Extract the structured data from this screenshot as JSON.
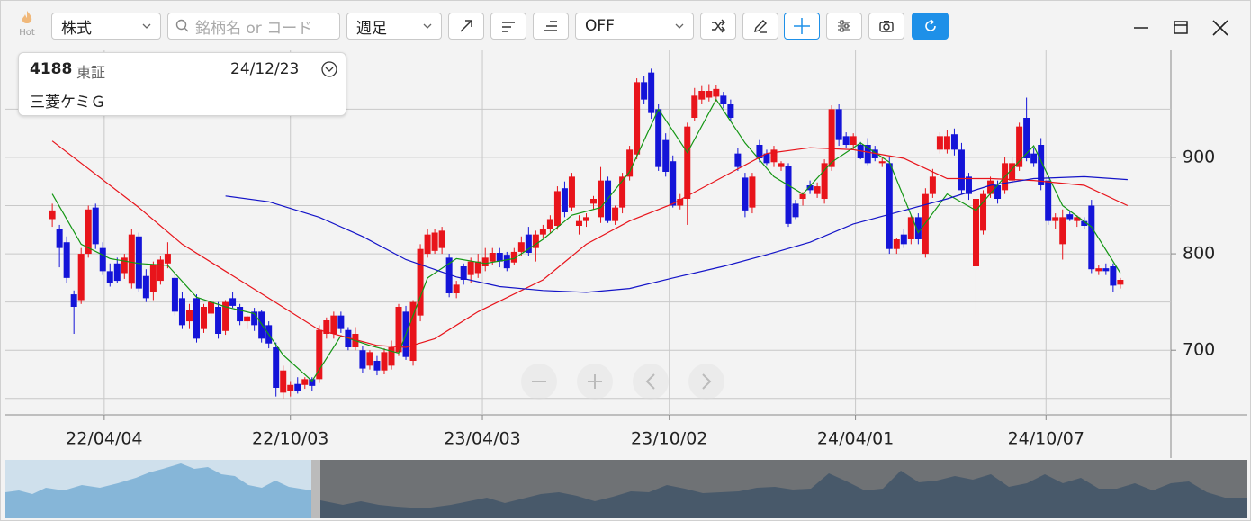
{
  "toolbar": {
    "hot": "Hot",
    "market": "株式",
    "search_placeholder": "銘柄名 or コード",
    "period": "週足",
    "indicator": "OFF"
  },
  "info": {
    "code": "4188",
    "exchange": "東証",
    "date": "24/12/23",
    "name": "三菱ケミＧ"
  },
  "chart_data": {
    "type": "candlestick",
    "up_color": "#e8141b",
    "down_color": "#1414d8",
    "candles": [
      [
        836,
        852,
        828,
        845
      ],
      [
        826,
        830,
        786,
        806
      ],
      [
        812,
        818,
        770,
        775
      ],
      [
        758,
        762,
        717,
        745
      ],
      [
        752,
        806,
        748,
        800
      ],
      [
        800,
        850,
        796,
        846
      ],
      [
        848,
        852,
        805,
        810
      ],
      [
        806,
        812,
        778,
        782
      ],
      [
        782,
        790,
        766,
        770
      ],
      [
        790,
        796,
        770,
        772
      ],
      [
        780,
        800,
        774,
        796
      ],
      [
        769,
        826,
        764,
        820
      ],
      [
        818,
        822,
        760,
        764
      ],
      [
        777,
        784,
        750,
        754
      ],
      [
        760,
        792,
        752,
        788
      ],
      [
        772,
        798,
        768,
        794
      ],
      [
        790,
        812,
        785,
        800
      ],
      [
        775,
        780,
        736,
        740
      ],
      [
        754,
        760,
        722,
        726
      ],
      [
        730,
        748,
        722,
        742
      ],
      [
        754,
        758,
        708,
        712
      ],
      [
        722,
        748,
        718,
        745
      ],
      [
        738,
        752,
        734,
        750
      ],
      [
        745,
        750,
        712,
        717
      ],
      [
        720,
        752,
        716,
        750
      ],
      [
        754,
        760,
        744,
        746
      ],
      [
        745,
        748,
        726,
        730
      ],
      [
        730,
        736,
        722,
        735
      ],
      [
        740,
        744,
        720,
        726
      ],
      [
        740,
        742,
        708,
        712
      ],
      [
        726,
        730,
        702,
        707
      ],
      [
        703,
        708,
        652,
        661
      ],
      [
        656,
        684,
        650,
        679
      ],
      [
        658,
        668,
        652,
        664
      ],
      [
        665,
        672,
        655,
        658
      ],
      [
        664,
        672,
        660,
        670
      ],
      [
        670,
        672,
        658,
        663
      ],
      [
        670,
        726,
        666,
        721
      ],
      [
        717,
        734,
        712,
        731
      ],
      [
        717,
        740,
        712,
        736
      ],
      [
        736,
        740,
        718,
        722
      ],
      [
        721,
        724,
        700,
        703
      ],
      [
        703,
        724,
        700,
        717
      ],
      [
        700,
        704,
        676,
        681
      ],
      [
        684,
        700,
        680,
        698
      ],
      [
        689,
        694,
        674,
        679
      ],
      [
        679,
        702,
        675,
        698
      ],
      [
        684,
        710,
        680,
        703
      ],
      [
        698,
        748,
        694,
        745
      ],
      [
        740,
        746,
        690,
        693
      ],
      [
        689,
        752,
        684,
        750
      ],
      [
        736,
        810,
        730,
        805
      ],
      [
        800,
        826,
        796,
        820
      ],
      [
        803,
        826,
        800,
        822
      ],
      [
        806,
        828,
        800,
        824
      ],
      [
        796,
        800,
        755,
        759
      ],
      [
        759,
        772,
        754,
        768
      ],
      [
        787,
        790,
        768,
        773
      ],
      [
        778,
        796,
        770,
        792
      ],
      [
        780,
        800,
        775,
        792
      ],
      [
        787,
        806,
        782,
        796
      ],
      [
        792,
        806,
        788,
        801
      ],
      [
        801,
        806,
        786,
        792
      ],
      [
        799,
        802,
        782,
        785
      ],
      [
        791,
        806,
        788,
        802
      ],
      [
        802,
        818,
        798,
        812
      ],
      [
        820,
        828,
        798,
        801
      ],
      [
        806,
        824,
        792,
        820
      ],
      [
        820,
        830,
        816,
        826
      ],
      [
        826,
        840,
        822,
        836
      ],
      [
        829,
        870,
        825,
        865
      ],
      [
        868,
        875,
        838,
        843
      ],
      [
        848,
        884,
        844,
        880
      ],
      [
        829,
        840,
        820,
        834
      ],
      [
        834,
        842,
        828,
        838
      ],
      [
        852,
        860,
        846,
        857
      ],
      [
        838,
        890,
        832,
        876
      ],
      [
        876,
        880,
        832,
        834
      ],
      [
        834,
        850,
        830,
        848
      ],
      [
        848,
        884,
        842,
        880
      ],
      [
        880,
        912,
        876,
        908
      ],
      [
        903,
        982,
        898,
        978
      ],
      [
        978,
        984,
        955,
        960
      ],
      [
        988,
        992,
        940,
        946
      ],
      [
        950,
        955,
        886,
        890
      ],
      [
        918,
        925,
        880,
        885
      ],
      [
        896,
        902,
        848,
        850
      ],
      [
        850,
        862,
        846,
        857
      ],
      [
        857,
        936,
        830,
        932
      ],
      [
        941,
        972,
        938,
        964
      ],
      [
        960,
        974,
        955,
        969
      ],
      [
        962,
        976,
        958,
        969
      ],
      [
        963,
        975,
        958,
        971
      ],
      [
        964,
        968,
        951,
        955
      ],
      [
        955,
        960,
        938,
        941
      ],
      [
        904,
        910,
        886,
        890
      ],
      [
        879,
        884,
        838,
        845
      ],
      [
        848,
        884,
        842,
        880
      ],
      [
        913,
        918,
        895,
        899
      ],
      [
        904,
        908,
        892,
        894
      ],
      [
        895,
        912,
        890,
        908
      ],
      [
        890,
        896,
        886,
        894
      ],
      [
        891,
        894,
        828,
        831
      ],
      [
        852,
        856,
        836,
        838
      ],
      [
        857,
        864,
        850,
        862
      ],
      [
        871,
        876,
        862,
        866
      ],
      [
        862,
        874,
        858,
        870
      ],
      [
        857,
        898,
        852,
        894
      ],
      [
        890,
        954,
        886,
        950
      ],
      [
        950,
        955,
        912,
        918
      ],
      [
        922,
        926,
        910,
        913
      ],
      [
        913,
        925,
        908,
        922
      ],
      [
        913,
        916,
        898,
        899
      ],
      [
        913,
        920,
        892,
        894
      ],
      [
        908,
        912,
        896,
        899
      ],
      [
        894,
        900,
        890,
        896
      ],
      [
        894,
        900,
        800,
        805
      ],
      [
        805,
        816,
        800,
        815
      ],
      [
        820,
        826,
        806,
        810
      ],
      [
        815,
        840,
        810,
        838
      ],
      [
        838,
        842,
        810,
        815
      ],
      [
        800,
        868,
        796,
        862
      ],
      [
        862,
        888,
        858,
        880
      ],
      [
        908,
        926,
        904,
        922
      ],
      [
        908,
        928,
        904,
        922
      ],
      [
        924,
        930,
        902,
        908
      ],
      [
        908,
        915,
        862,
        866
      ],
      [
        880,
        884,
        856,
        862
      ],
      [
        787,
        862,
        736,
        857
      ],
      [
        824,
        866,
        820,
        862
      ],
      [
        862,
        880,
        858,
        876
      ],
      [
        871,
        876,
        852,
        857
      ],
      [
        866,
        900,
        862,
        894
      ],
      [
        876,
        900,
        872,
        894
      ],
      [
        890,
        936,
        886,
        932
      ],
      [
        941,
        962,
        896,
        899
      ],
      [
        904,
        910,
        890,
        894
      ],
      [
        913,
        920,
        866,
        871
      ],
      [
        876,
        880,
        830,
        834
      ],
      [
        834,
        842,
        826,
        838
      ],
      [
        810,
        846,
        794,
        838
      ],
      [
        841,
        844,
        834,
        836
      ],
      [
        834,
        840,
        828,
        838
      ],
      [
        834,
        838,
        826,
        829
      ],
      [
        850,
        856,
        780,
        784
      ],
      [
        782,
        788,
        778,
        785
      ],
      [
        785,
        790,
        778,
        782
      ],
      [
        787,
        790,
        760,
        767
      ],
      [
        768,
        775,
        764,
        773
      ]
    ],
    "xlim": [
      -6.5,
      155
    ],
    "xticks": [
      {
        "value": 7.2,
        "label": "22/04/04"
      },
      {
        "value": 33,
        "label": "22/10/03"
      },
      {
        "value": 59.6,
        "label": "23/04/03"
      },
      {
        "value": 85.5,
        "label": "23/10/02"
      },
      {
        "value": 111.3,
        "label": "24/04/01"
      },
      {
        "value": 137.7,
        "label": "24/10/07"
      }
    ],
    "ylim": [
      633,
      1011
    ],
    "yticks": [
      700,
      800,
      900
    ],
    "minor_grid": [
      650,
      750,
      850,
      950
    ],
    "grid": true,
    "moving_averages": [
      {
        "color": "#139613",
        "x": [
          0,
          4,
          8,
          12,
          16,
          20,
          24,
          28,
          32,
          36,
          40,
          44,
          48,
          52,
          56,
          60,
          64,
          68,
          72,
          76,
          80,
          84,
          88,
          92,
          96,
          100,
          104,
          108,
          112,
          116,
          120,
          124,
          128,
          132,
          136,
          140,
          144,
          148
        ],
        "values": [
          862,
          810,
          795,
          790,
          788,
          755,
          745,
          738,
          695,
          668,
          715,
          705,
          697,
          775,
          795,
          790,
          795,
          815,
          840,
          848,
          885,
          950,
          905,
          960,
          915,
          880,
          862,
          895,
          915,
          895,
          822,
          862,
          845,
          880,
          912,
          850,
          828,
          780
        ]
      },
      {
        "color": "#e8141b",
        "x": [
          0,
          12,
          18,
          30,
          37,
          45,
          49,
          53,
          59,
          68,
          74,
          80,
          86,
          93,
          99,
          105,
          111,
          118,
          124,
          130,
          136,
          143,
          149
        ],
        "values": [
          917,
          848,
          810,
          754,
          721,
          705,
          703,
          712,
          740,
          773,
          810,
          834,
          852,
          880,
          904,
          910,
          908,
          899,
          878,
          878,
          876,
          871,
          850
        ]
      },
      {
        "color": "#1414c8",
        "x": [
          24,
          30,
          37,
          43,
          49,
          56,
          62,
          68,
          74,
          80,
          86,
          93,
          99,
          105,
          111,
          118,
          124,
          130,
          136,
          143,
          149
        ],
        "values": [
          860,
          854,
          838,
          818,
          794,
          776,
          766,
          762,
          760,
          764,
          775,
          787,
          799,
          812,
          831,
          845,
          857,
          871,
          878,
          880,
          877
        ]
      }
    ]
  }
}
